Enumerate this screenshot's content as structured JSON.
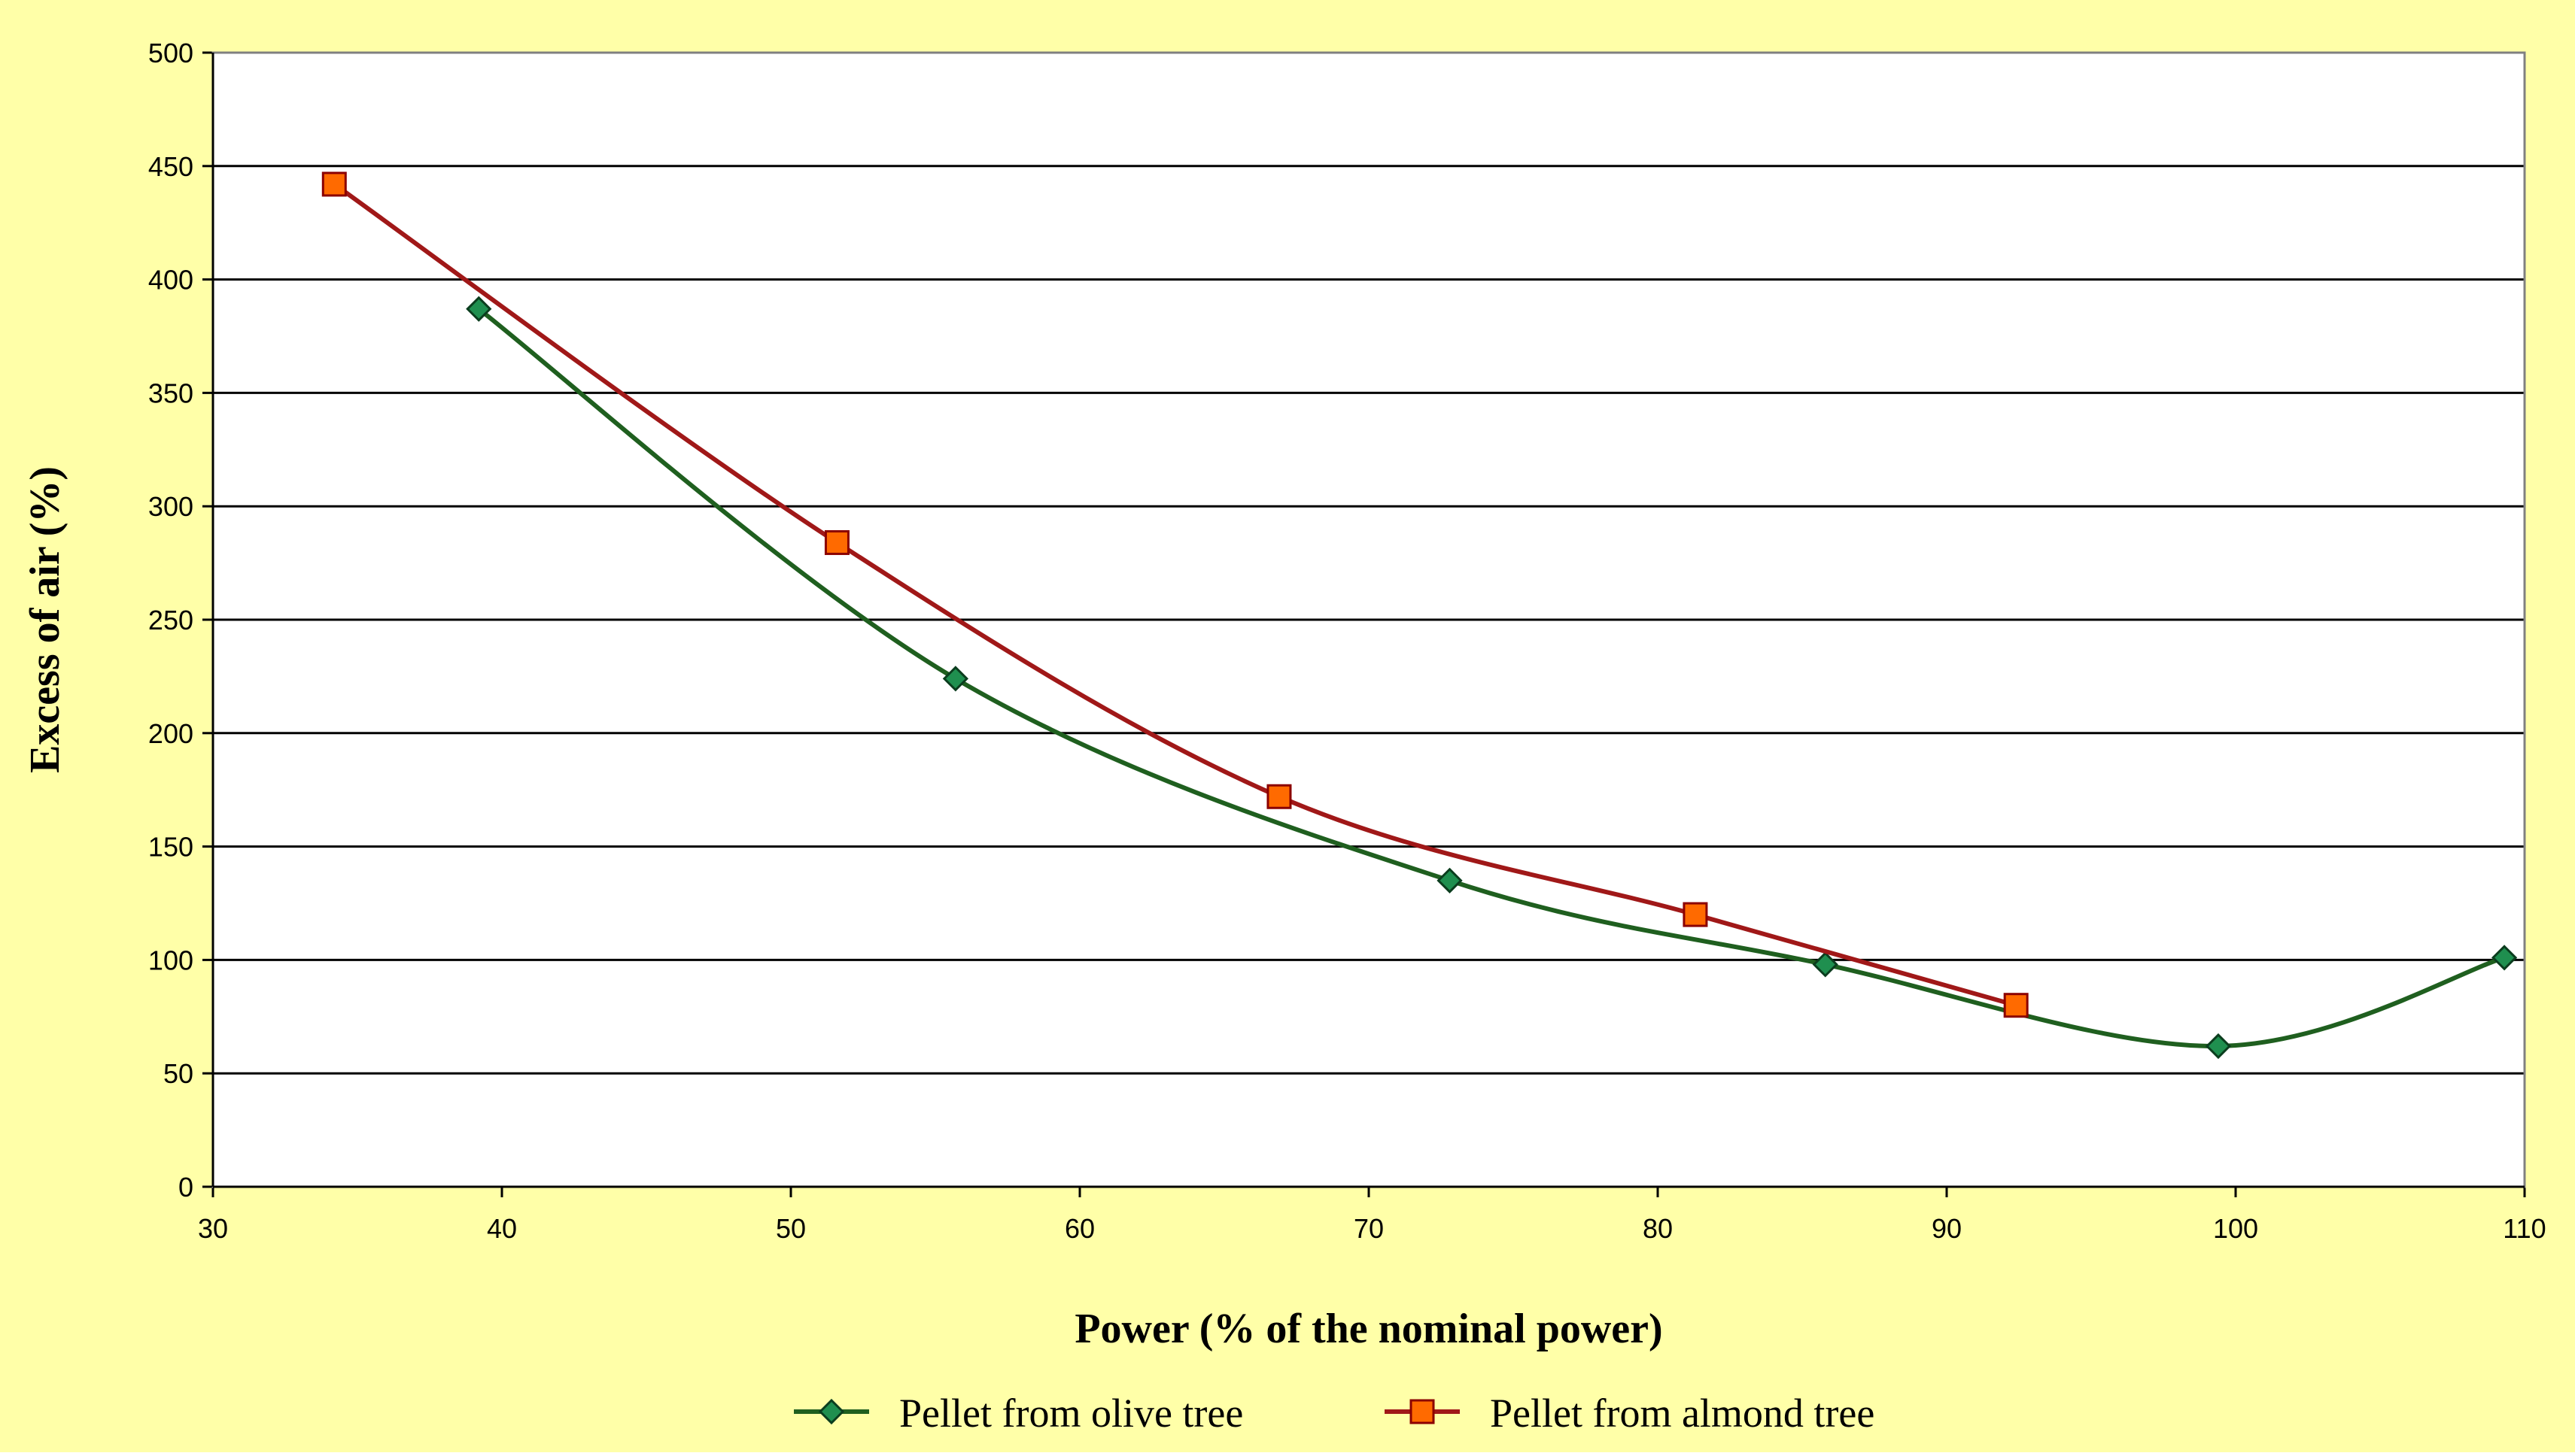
{
  "chart_data": {
    "type": "line",
    "title": "",
    "xlabel": "Power (% of the nominal power)",
    "ylabel": "Excess of air (%)",
    "xlim": [
      30,
      110
    ],
    "ylim": [
      0,
      500
    ],
    "xticks": [
      30,
      40,
      50,
      60,
      70,
      80,
      90,
      100,
      110
    ],
    "yticks": [
      0,
      50,
      100,
      150,
      200,
      250,
      300,
      350,
      400,
      450,
      500
    ],
    "grid": true,
    "legend_position": "bottom",
    "series": [
      {
        "name": "Pellet from olive tree",
        "color": "#1f5f1f",
        "marker": "diamond",
        "marker_color": "#1f8f4f",
        "x": [
          39.2,
          55.7,
          72.8,
          85.8,
          99.4,
          109.3
        ],
        "y": [
          387,
          224,
          135,
          98,
          62,
          101
        ]
      },
      {
        "name": "Pellet from almond tree",
        "color": "#a01818",
        "marker": "square",
        "marker_color": "#ff6a00",
        "x": [
          34.2,
          51.6,
          66.9,
          81.3,
          92.4
        ],
        "y": [
          442,
          284,
          172,
          120,
          80
        ]
      }
    ],
    "colors": {
      "background": "#ffffa8",
      "plot_background": "#ffffff",
      "gridline": "#000000"
    }
  }
}
